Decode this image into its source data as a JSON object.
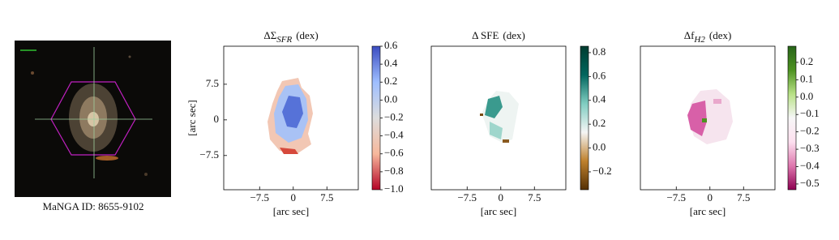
{
  "image_panel": {
    "caption": "MaNGA ID: 8655-9102"
  },
  "chart_data": [
    {
      "type": "heatmap",
      "title": "ΔΣ",
      "title_subscript": "SFR",
      "title_unit": "(dex)",
      "xlabel": "[arc sec]",
      "ylabel": "[arc sec]",
      "xlim": [
        -15.5,
        14.5
      ],
      "ylim": [
        -14.7,
        15.5
      ],
      "xticks": [
        {
          "value": -7.5,
          "label": "−7.5"
        },
        0,
        7.5
      ],
      "yticks": [
        {
          "value": -7.5,
          "label": "−7.5"
        },
        0,
        7.5
      ],
      "colorbar": {
        "lim": [
          -1.0,
          0.6
        ],
        "colors": [
          "#b40426",
          "#f7b89c",
          "#dddddd",
          "#9ebeff",
          "#3b4cc0"
        ],
        "ticks": [
          {
            "value": -1.0,
            "label": "−1.0"
          },
          {
            "value": -0.8,
            "label": "−0.8"
          },
          {
            "value": -0.6,
            "label": "−0.6"
          },
          {
            "value": -0.4,
            "label": "−0.4"
          },
          {
            "value": -0.2,
            "label": "−0.2"
          },
          {
            "value": 0.0,
            "label": "0.0"
          },
          0.2,
          0.4,
          0.6
        ]
      }
    },
    {
      "type": "heatmap",
      "title": "Δ SFE",
      "title_unit": "(dex)",
      "xlabel": "[arc sec]",
      "xlim": [
        -15.5,
        14.5
      ],
      "ylim": [
        -14.7,
        15.5
      ],
      "xticks": [
        {
          "value": -7.5,
          "label": "−7.5"
        },
        0,
        7.5
      ],
      "colorbar": {
        "lim": [
          -0.35,
          0.854
        ],
        "colors": [
          "#543005",
          "#bf812d",
          "#f5f5f5",
          "#80cdc1",
          "#01665e",
          "#003c30"
        ],
        "ticks": [
          {
            "value": -0.2,
            "label": "−0.2"
          },
          {
            "value": 0.0,
            "label": "0.0"
          },
          0.2,
          0.4,
          0.6,
          0.8
        ]
      }
    },
    {
      "type": "heatmap",
      "title": "Δf",
      "title_subscript": "H2",
      "title_unit": "(dex)",
      "xlabel": "[arc sec]",
      "xlim": [
        -15.5,
        14.5
      ],
      "ylim": [
        -14.7,
        15.5
      ],
      "xticks": [
        {
          "value": -7.5,
          "label": "−7.5"
        },
        0,
        7.5
      ],
      "colorbar": {
        "lim": [
          -0.533,
          0.293
        ],
        "colors": [
          "#8e0152",
          "#de77ae",
          "#fde0ef",
          "#f7f7f7",
          "#b8e186",
          "#4d9221",
          "#276419"
        ],
        "ticks": [
          {
            "value": -0.5,
            "label": "−0.5"
          },
          {
            "value": -0.4,
            "label": "−0.4"
          },
          {
            "value": -0.3,
            "label": "−0.3"
          },
          {
            "value": -0.2,
            "label": "−0.2"
          },
          {
            "value": -0.1,
            "label": "−0.1"
          },
          {
            "value": 0.0,
            "label": "0.0"
          },
          0.1,
          0.2
        ]
      }
    }
  ]
}
